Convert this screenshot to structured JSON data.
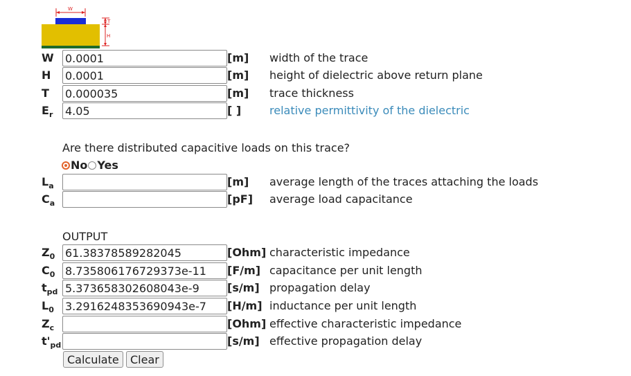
{
  "diagram": {
    "w_label": "W",
    "h_label": "H",
    "t_label": "T"
  },
  "inputs": [
    {
      "sym": "W",
      "sub": "",
      "value": "0.0001",
      "unit": "[m]",
      "desc": "width of the trace",
      "link": false
    },
    {
      "sym": "H",
      "sub": "",
      "value": "0.0001",
      "unit": "[m]",
      "desc": "height of dielectric above return plane",
      "link": false
    },
    {
      "sym": "T",
      "sub": "",
      "value": "0.000035",
      "unit": "[m]",
      "desc": "trace thickness",
      "link": false
    },
    {
      "sym": "E",
      "sub": "r",
      "value": "4.05",
      "unit": "[ ]",
      "desc": "relative permittivity of the dielectric",
      "link": true
    }
  ],
  "loads": {
    "question": "Are there distributed capacitive loads on this trace?",
    "options": [
      "No",
      "Yes"
    ],
    "selected": "No",
    "fields": [
      {
        "sym": "L",
        "sub": "a",
        "value": "",
        "unit": "[m]",
        "desc": "average length of the traces attaching the loads"
      },
      {
        "sym": "C",
        "sub": "a",
        "value": "",
        "unit": "[pF]",
        "desc": "average load capacitance"
      }
    ]
  },
  "output": {
    "heading": "OUTPUT",
    "fields": [
      {
        "sym": "Z",
        "sub": "0",
        "value": "61.38378589282045",
        "unit": "[Ohm]",
        "desc": "characteristic impedance"
      },
      {
        "sym": "C",
        "sub": "0",
        "value": "8.735806176729373e-11",
        "unit": "[F/m]",
        "desc": "capacitance per unit length"
      },
      {
        "sym": "t",
        "sub": "pd",
        "value": "5.373658302608043e-9",
        "unit": "[s/m]",
        "desc": "propagation delay"
      },
      {
        "sym": "L",
        "sub": "0",
        "value": "3.2916248353690943e-7",
        "unit": "[H/m]",
        "desc": "inductance per unit length"
      },
      {
        "sym": "Z",
        "sub": "c",
        "value": "",
        "unit": "[Ohm]",
        "desc": "effective characteristic impedance"
      },
      {
        "sym": "t'",
        "sub": "pd",
        "value": "",
        "unit": "[s/m]",
        "desc": "effective propagation delay"
      }
    ]
  },
  "buttons": {
    "calculate": "Calculate",
    "clear": "Clear"
  }
}
